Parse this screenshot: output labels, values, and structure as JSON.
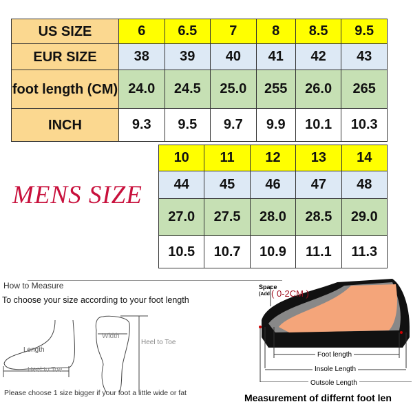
{
  "table1": {
    "row_labels": [
      "US SIZE",
      "EUR SIZE",
      "foot length (CM)",
      "INCH"
    ],
    "us": [
      "6",
      "6.5",
      "7",
      "8",
      "8.5",
      "9.5"
    ],
    "eur": [
      "38",
      "39",
      "40",
      "41",
      "42",
      "43"
    ],
    "cm": [
      "24.0",
      "24.5",
      "25.0",
      "255",
      "26.0",
      "265"
    ],
    "inch": [
      "9.3",
      "9.5",
      "9.7",
      "9.9",
      "10.1",
      "10.3"
    ]
  },
  "mens_label": "MENS SIZE",
  "table2": {
    "us": [
      "10",
      "11",
      "12",
      "13",
      "14"
    ],
    "eur": [
      "44",
      "45",
      "46",
      "47",
      "48"
    ],
    "cm": [
      "27.0",
      "27.5",
      "28.0",
      "28.5",
      "29.0"
    ],
    "inch": [
      "10.5",
      "10.7",
      "10.9",
      "11.1",
      "11.3"
    ]
  },
  "how_to": {
    "title": "How to Measure",
    "subtitle": "To choose your size according to your foot length",
    "length": "Length",
    "heel_to_toe": "Heel to Toe",
    "width": "Width",
    "note": "Please choose 1 size bigger if your foot a little wide or fat"
  },
  "shoe": {
    "space": "Space",
    "add": "(Add",
    "range": "( 0-2CM  )",
    "foot_length": "Foot length",
    "insole": "Insole Length",
    "outsole": "Outsole Length",
    "caption": "Measurement of differnt foot len"
  },
  "colors": {
    "header": "#fbd890",
    "us": "#ffff00",
    "eur": "#dde9f5",
    "cm": "#c6e0b4",
    "accent": "#c8103c"
  }
}
